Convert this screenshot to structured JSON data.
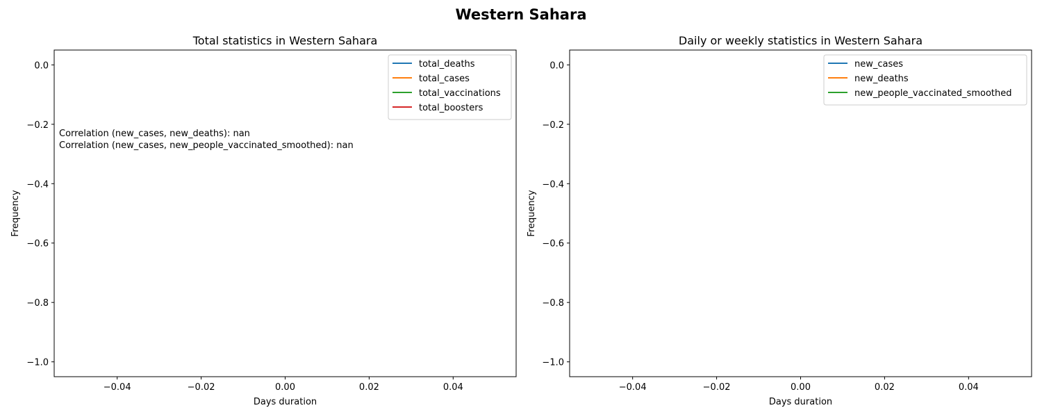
{
  "figure": {
    "suptitle": "Western Sahara"
  },
  "chart_data": [
    {
      "type": "line",
      "title": "Total statistics in Western Sahara",
      "xlabel": "Days duration",
      "ylabel": "Frequency",
      "xlim": [
        -0.055,
        0.055
      ],
      "ylim": [
        -1.05,
        0.05
      ],
      "xticks": [
        -0.04,
        -0.02,
        0.0,
        0.02,
        0.04
      ],
      "xtick_labels": [
        "−0.04",
        "−0.02",
        "0.00",
        "0.02",
        "0.04"
      ],
      "yticks": [
        0.0,
        -0.2,
        -0.4,
        -0.6,
        -0.8,
        -1.0
      ],
      "ytick_labels": [
        "0.0",
        "−0.2",
        "−0.4",
        "−0.6",
        "−0.8",
        "−1.0"
      ],
      "legend_position": "upper right",
      "series": [
        {
          "name": "total_deaths",
          "color": "#1f77b4",
          "x": [],
          "y": []
        },
        {
          "name": "total_cases",
          "color": "#ff7f0e",
          "x": [],
          "y": []
        },
        {
          "name": "total_vaccinations",
          "color": "#2ca02c",
          "x": [],
          "y": []
        },
        {
          "name": "total_boosters",
          "color": "#d62728",
          "x": [],
          "y": []
        }
      ],
      "annotations": [
        "Correlation (new_cases, new_deaths): nan",
        "Correlation (new_cases, new_people_vaccinated_smoothed): nan"
      ]
    },
    {
      "type": "line",
      "title": "Daily or weekly statistics in Western Sahara",
      "xlabel": "Days duration",
      "ylabel": "Frequency",
      "xlim": [
        -0.055,
        0.055
      ],
      "ylim": [
        -1.05,
        0.05
      ],
      "xticks": [
        -0.04,
        -0.02,
        0.0,
        0.02,
        0.04
      ],
      "xtick_labels": [
        "−0.04",
        "−0.02",
        "0.00",
        "0.02",
        "0.04"
      ],
      "yticks": [
        0.0,
        -0.2,
        -0.4,
        -0.6,
        -0.8,
        -1.0
      ],
      "ytick_labels": [
        "0.0",
        "−0.2",
        "−0.4",
        "−0.6",
        "−0.8",
        "−1.0"
      ],
      "legend_position": "upper right",
      "series": [
        {
          "name": "new_cases",
          "color": "#1f77b4",
          "x": [],
          "y": []
        },
        {
          "name": "new_deaths",
          "color": "#ff7f0e",
          "x": [],
          "y": []
        },
        {
          "name": "new_people_vaccinated_smoothed",
          "color": "#2ca02c",
          "x": [],
          "y": []
        }
      ],
      "annotations": []
    }
  ]
}
